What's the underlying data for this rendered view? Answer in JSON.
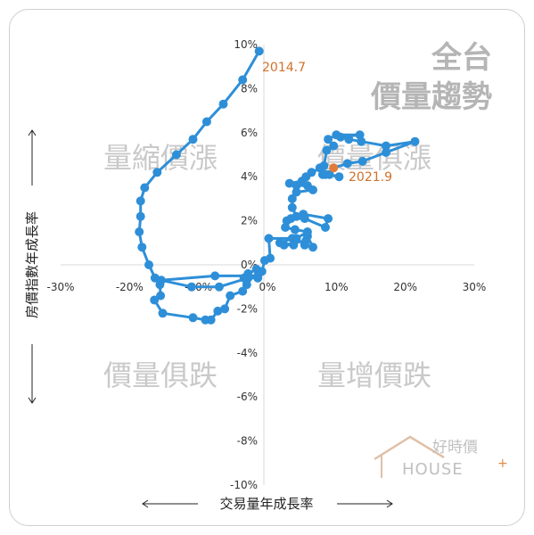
{
  "chart_data": {
    "type": "scatter",
    "title": [
      "全台",
      "價量趨勢"
    ],
    "xlabel": "交易量年成長率",
    "ylabel": "房價指數年成長率",
    "xlim": [
      -30,
      30
    ],
    "ylim": [
      -10,
      10
    ],
    "x_ticks": [
      "-30%",
      "-20%",
      "-10%",
      "0%",
      "10%",
      "20%",
      "30%"
    ],
    "y_ticks": [
      "10%",
      "8%",
      "6%",
      "4%",
      "2%",
      "0%",
      "-2%",
      "-4%",
      "-6%",
      "-8%",
      "-10%"
    ],
    "quadrant_labels": {
      "top_left": "量縮價漲",
      "top_right": "價量俱漲",
      "bottom_left": "價量俱跌",
      "bottom_right": "量增價跌"
    },
    "annotations": [
      {
        "label": "2014.7",
        "x": -1.2,
        "y": 9.7
      },
      {
        "label": "2021.9",
        "x": 9.6,
        "y": 4.4
      }
    ],
    "series": [
      {
        "color": "#2e8fd8",
        "points": [
          [
            -1.2,
            9.7
          ],
          [
            -3.6,
            8.4
          ],
          [
            -6.4,
            7.3
          ],
          [
            -8.8,
            6.5
          ],
          [
            -10.8,
            5.7
          ],
          [
            -13.2,
            5.0
          ],
          [
            -16.0,
            4.2
          ],
          [
            -17.8,
            3.5
          ],
          [
            -18.4,
            2.9
          ],
          [
            -18.4,
            2.2
          ],
          [
            -18.6,
            1.5
          ],
          [
            -18.2,
            0.8
          ],
          [
            -17.2,
            0.0
          ],
          [
            -16.3,
            -0.6
          ],
          [
            -15.6,
            -0.9
          ],
          [
            -15.5,
            -1.4
          ],
          [
            -16.4,
            -1.6
          ],
          [
            -15.2,
            -2.2
          ],
          [
            -10.8,
            -2.4
          ],
          [
            -9.0,
            -2.5
          ],
          [
            -8.2,
            -2.5
          ],
          [
            -7.2,
            -2.1
          ],
          [
            -6.2,
            -2.0
          ],
          [
            -5.4,
            -1.4
          ],
          [
            -3.6,
            -1.2
          ],
          [
            -3.0,
            -0.9
          ],
          [
            -3.4,
            -0.6
          ],
          [
            -2.8,
            -0.4
          ],
          [
            -1.6,
            -0.2
          ],
          [
            -1.4,
            -0.5
          ],
          [
            -7.6,
            -0.5
          ],
          [
            -15.4,
            -0.7
          ],
          [
            -11.0,
            -1.0
          ],
          [
            -7.0,
            -1.0
          ],
          [
            -2.8,
            -0.6
          ],
          [
            -1.4,
            -0.6
          ],
          [
            -0.8,
            -0.3
          ],
          [
            -0.4,
            0.2
          ],
          [
            0.4,
            0.3
          ],
          [
            0.2,
            1.2
          ],
          [
            3.6,
            1.2
          ],
          [
            1.8,
            1.0
          ],
          [
            3.8,
            0.9
          ],
          [
            2.4,
            0.9
          ],
          [
            5.6,
            1.1
          ],
          [
            5.8,
            1.3
          ],
          [
            6.6,
            0.8
          ],
          [
            5.4,
            0.9
          ],
          [
            4.2,
            1.2
          ],
          [
            5.8,
            1.5
          ],
          [
            4.0,
            1.6
          ],
          [
            2.6,
            1.7
          ],
          [
            2.8,
            2.0
          ],
          [
            3.4,
            2.1
          ],
          [
            5.4,
            2.1
          ],
          [
            8.4,
            1.7
          ],
          [
            8.8,
            2.1
          ],
          [
            5.2,
            2.3
          ],
          [
            4.2,
            2.2
          ],
          [
            3.6,
            2.6
          ],
          [
            3.6,
            3.0
          ],
          [
            4.2,
            3.3
          ],
          [
            6.6,
            3.4
          ],
          [
            5.8,
            3.6
          ],
          [
            4.2,
            3.6
          ],
          [
            3.2,
            3.7
          ],
          [
            5.0,
            3.8
          ],
          [
            6.4,
            4.2
          ],
          [
            5.6,
            4.0
          ],
          [
            7.6,
            4.4
          ],
          [
            8.4,
            4.1
          ],
          [
            10.4,
            4.0
          ],
          [
            9.0,
            4.1
          ],
          [
            8.0,
            4.1
          ],
          [
            8.2,
            4.5
          ],
          [
            8.6,
            5.2
          ],
          [
            9.6,
            5.4
          ],
          [
            8.8,
            5.7
          ],
          [
            10.0,
            5.9
          ],
          [
            13.4,
            5.9
          ],
          [
            10.6,
            5.8
          ],
          [
            11.8,
            5.7
          ],
          [
            13.6,
            5.6
          ],
          [
            17.2,
            5.4
          ],
          [
            21.4,
            5.6
          ],
          [
            17.2,
            5.1
          ],
          [
            13.8,
            4.7
          ],
          [
            11.6,
            4.6
          ],
          [
            9.6,
            4.4
          ]
        ]
      }
    ]
  },
  "logo": {
    "text_cn": "好時價",
    "text_en": "HOUSE"
  }
}
